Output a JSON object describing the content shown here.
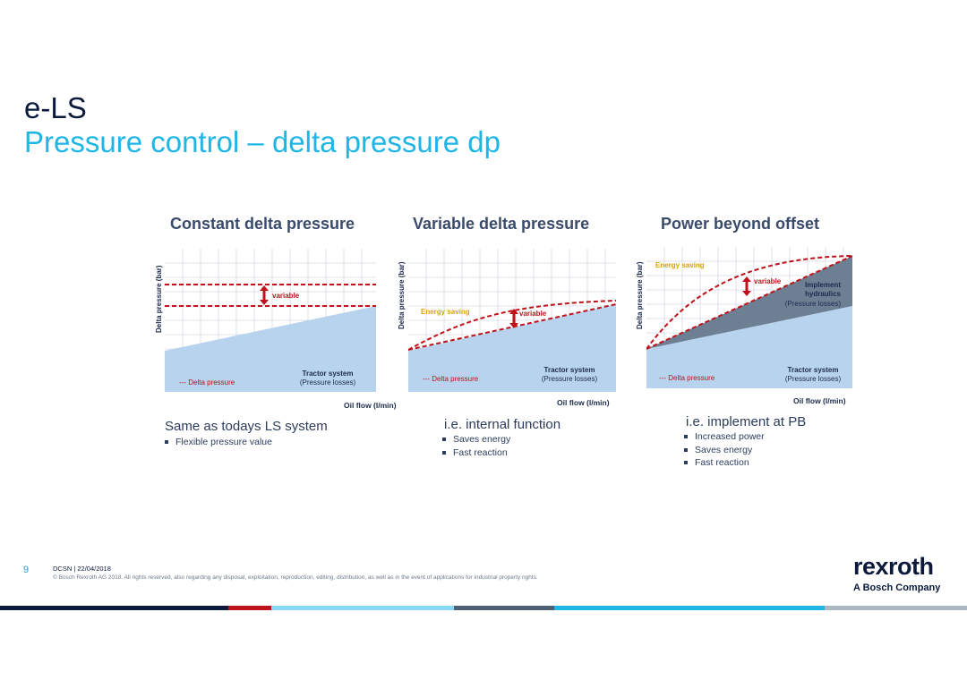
{
  "slide": {
    "title": "e-LS",
    "subtitle": "Pressure control – delta pressure dp"
  },
  "panels": [
    {
      "title": "Constant delta pressure",
      "y_label": "Delta pressure (bar)",
      "x_label": "Oil flow (l/min)",
      "legend": "--- Delta pressure",
      "system_label": "Tractor system",
      "system_sub": "(Pressure losses)",
      "variable_label": "variable",
      "heading": "Same as todays LS system",
      "bullets": [
        "Flexible pressure value"
      ]
    },
    {
      "title": "Variable delta pressure",
      "y_label": "Delta pressure (bar)",
      "x_label": "Oil flow (l/min)",
      "legend": "--- Delta pressure",
      "system_label": "Tractor system",
      "system_sub": "(Pressure losses)",
      "variable_label": "variable",
      "saving_label": "Energy saving",
      "heading": "i.e. internal function",
      "bullets": [
        "Saves energy",
        "Fast reaction"
      ]
    },
    {
      "title": "Power beyond offset",
      "y_label": "Delta pressure (bar)",
      "x_label": "Oil flow (l/min)",
      "legend": "--- Delta pressure",
      "system_label": "Tractor system",
      "system_sub": "(Pressure losses)",
      "variable_label": "variable",
      "saving_label": "Energy saving",
      "implement_label_1": "Implement",
      "implement_label_2": "hydraulics",
      "implement_sub": "(Pressure losses)",
      "heading": "i.e. implement at PB",
      "bullets": [
        "Increased power",
        "Saves energy",
        "Fast reaction"
      ]
    }
  ],
  "footer": {
    "page_number": "9",
    "meta": "DCSN | 22/04/2018",
    "copyright": "© Bosch Rexroth AG 2018. All rights reserved, also regarding any disposal, exploitation, reproduction, editing, distribution, as well as in the event of applications for industrial property rights.",
    "logo_word": "rexroth",
    "logo_sub": "A Bosch Company"
  },
  "colors": {
    "title": "#0b1a3c",
    "subtitle": "#1fb6e6",
    "area_blue": "#b8d3ee",
    "delta_red": "#c0121a",
    "implement_grey": "#6d7f93",
    "saving_gold": "#d9a400"
  }
}
